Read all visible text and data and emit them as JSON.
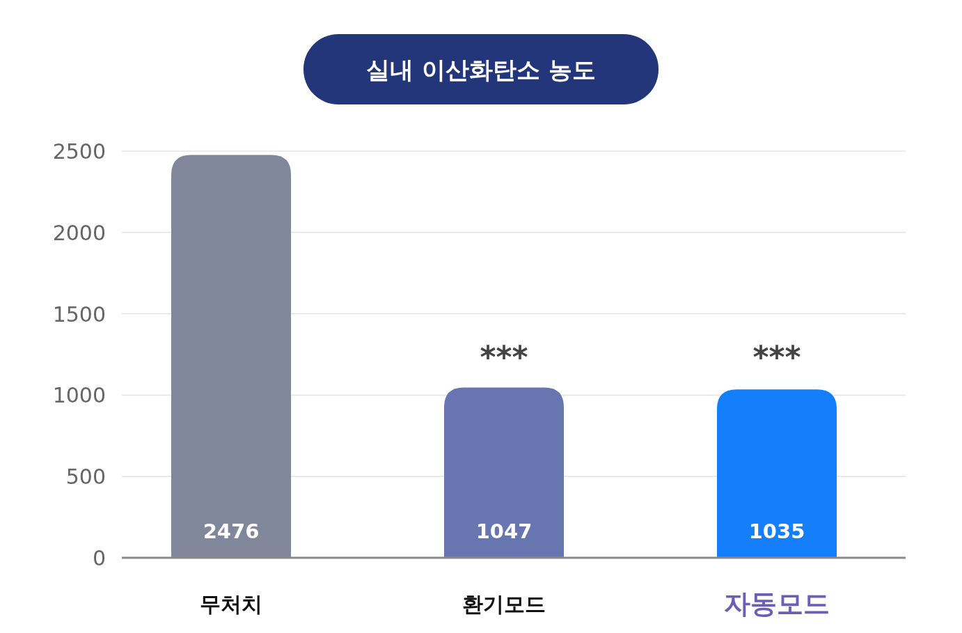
{
  "chart_data": {
    "type": "bar",
    "title": "실내 이산화탄소 농도",
    "categories": [
      "무처치",
      "환기모드",
      "자동모드"
    ],
    "values": [
      2476,
      1047,
      1035
    ],
    "colors": [
      "#80879a",
      "#6776b0",
      "#157efb"
    ],
    "ylim": [
      0,
      2500
    ],
    "yticks": [
      0,
      500,
      1000,
      1500,
      2000,
      2500
    ],
    "grid": "y",
    "data_labels": true,
    "annotations": [
      "***",
      "***"
    ]
  }
}
